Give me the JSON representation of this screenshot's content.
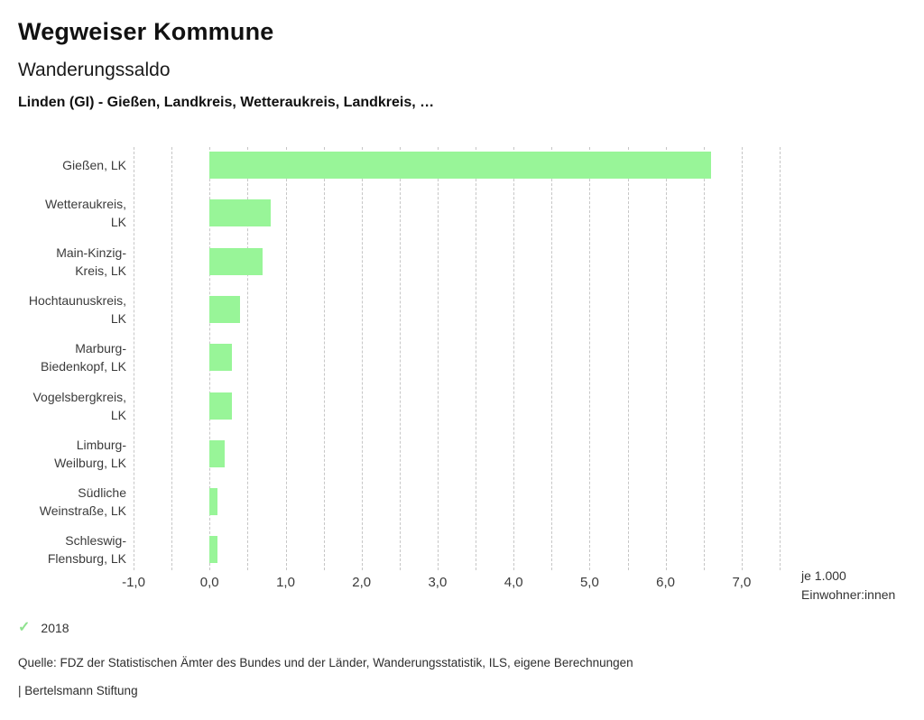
{
  "header": {
    "app_title": "Wegweiser Kommune",
    "chart_title": "Wanderungssaldo",
    "subtitle": "Linden (GI) - Gießen, Landkreis, Wetteraukreis, Landkreis, …"
  },
  "chart_data": {
    "type": "bar",
    "orientation": "horizontal",
    "title": "Wanderungssaldo",
    "categories": [
      "Gießen, LK",
      "Wetteraukreis, LK",
      "Main-Kinzig-Kreis, LK",
      "Hochtaunuskreis, LK",
      "Marburg-Biedenkopf, LK",
      "Vogelsbergkreis, LK",
      "Limburg-Weilburg, LK",
      "Südliche Weinstraße, LK",
      "Schleswig-Flensburg, LK"
    ],
    "category_lines": [
      [
        "Gießen, LK"
      ],
      [
        "Wetteraukreis,",
        "LK"
      ],
      [
        "Main-Kinzig-",
        "Kreis, LK"
      ],
      [
        "Hochtaunuskreis,",
        "LK"
      ],
      [
        "Marburg-",
        "Biedenkopf, LK"
      ],
      [
        "Vogelsbergkreis,",
        "LK"
      ],
      [
        "Limburg-",
        "Weilburg, LK"
      ],
      [
        "Südliche",
        "Weinstraße, LK"
      ],
      [
        "Schleswig-",
        "Flensburg, LK"
      ]
    ],
    "series": [
      {
        "name": "2018",
        "values": [
          6.6,
          0.8,
          0.7,
          0.4,
          0.3,
          0.3,
          0.2,
          0.1,
          0.1
        ]
      }
    ],
    "xlabel": "je 1.000 Einwohner:innen",
    "xlim": [
      -1.0,
      7.5
    ],
    "xticks": [
      -1.0,
      0.0,
      1.0,
      2.0,
      3.0,
      4.0,
      5.0,
      6.0,
      7.0
    ],
    "xtick_labels": [
      "-1,0",
      "0,0",
      "1,0",
      "2,0",
      "3,0",
      "4,0",
      "5,0",
      "6,0",
      "7,0"
    ],
    "grid_step": 0.5,
    "grid": "vertical-dashed",
    "legend_position": "bottom-left",
    "bar_color": "#98f598"
  },
  "axis_note": {
    "line1": "je 1.000",
    "line2": "Einwohner:innen"
  },
  "legend": {
    "check_icon": "✓",
    "year_label": "2018"
  },
  "footer": {
    "source": "Quelle: FDZ der Statistischen Ämter des Bundes und der Länder, Wanderungsstatistik, ILS, eigene Berechnungen",
    "branding": "| Bertelsmann Stiftung"
  },
  "colors": {
    "bar": "#98f598",
    "check": "#8fe28f",
    "grid": "#c6c6c6",
    "text": "#3b3b3b"
  }
}
